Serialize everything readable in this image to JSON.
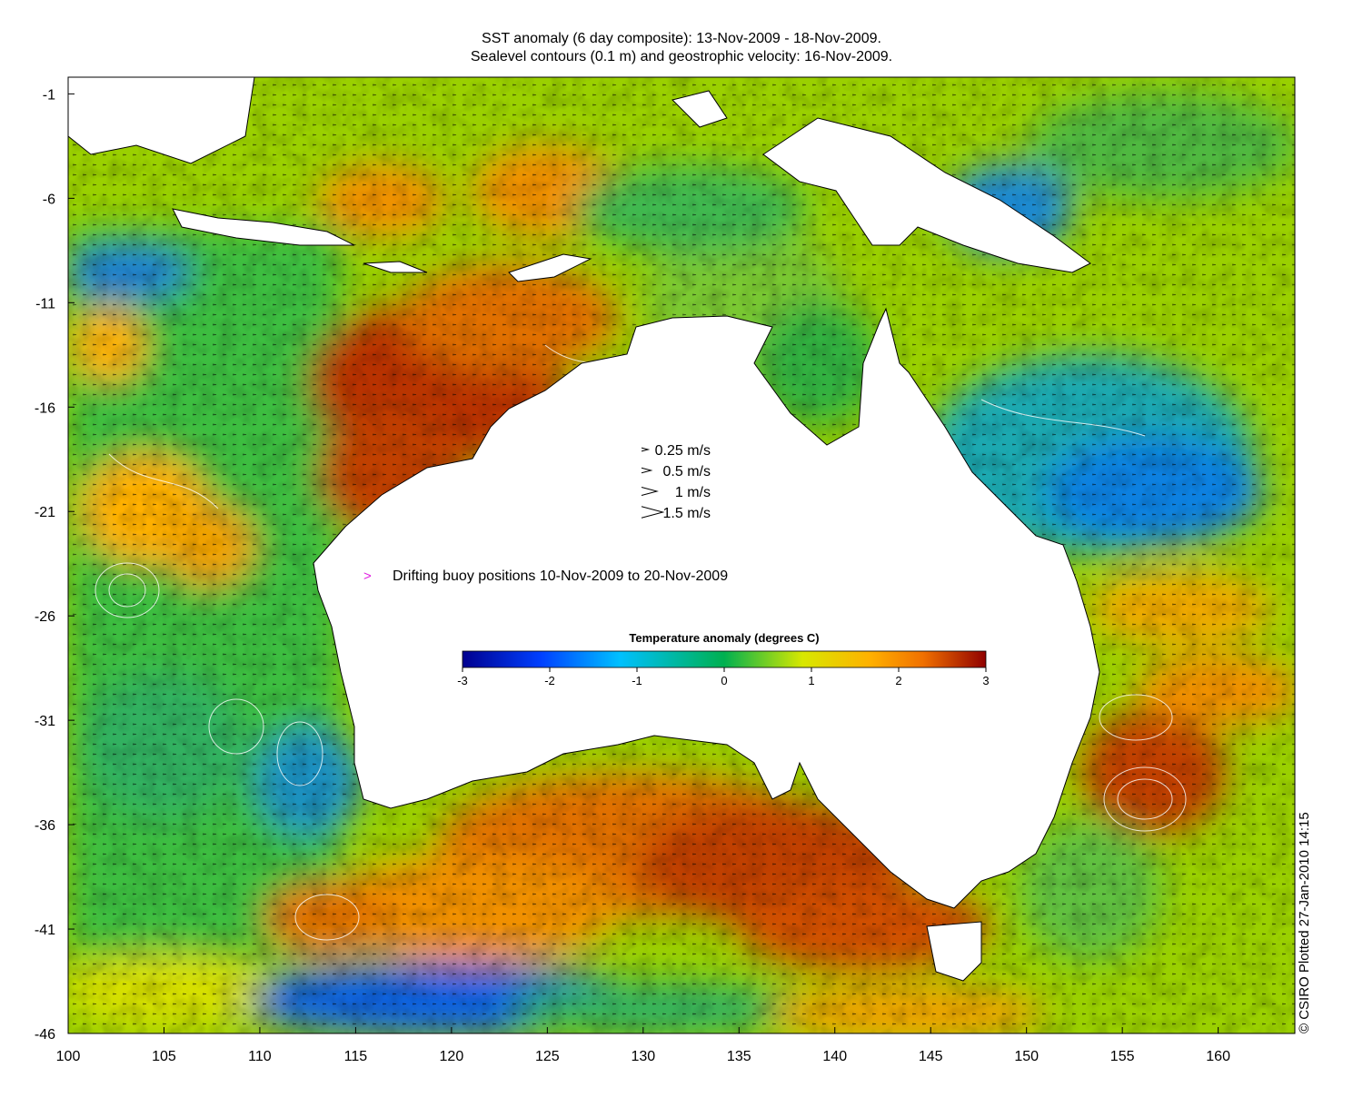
{
  "header": {
    "title_line1": "SST anomaly (6 day composite): 13-Nov-2009 - 18-Nov-2009.",
    "title_line2": "Sealevel contours (0.1 m) and geostrophic velocity: 16-Nov-2009."
  },
  "axes": {
    "x_ticks": [
      "100",
      "105",
      "110",
      "115",
      "120",
      "125",
      "130",
      "135",
      "140",
      "145",
      "150",
      "155",
      "160"
    ],
    "y_ticks": [
      "-1",
      "-6",
      "-11",
      "-16",
      "-21",
      "-26",
      "-31",
      "-36",
      "-41",
      "-46"
    ],
    "x_range": [
      100,
      164
    ],
    "y_range": [
      -46,
      -0.2
    ]
  },
  "velocity_legend": [
    {
      "label": "0.25 m/s",
      "speed": 0.25
    },
    {
      "label": "0.5 m/s",
      "speed": 0.5
    },
    {
      "label": "1 m/s",
      "speed": 1
    },
    {
      "label": "1.5 m/s",
      "speed": 1.5
    }
  ],
  "buoy_legend": {
    "symbol": ">",
    "label": "Drifting buoy positions 10-Nov-2009 to 20-Nov-2009",
    "color": "#e020e0"
  },
  "colorbar": {
    "title": "Temperature anomaly (degrees C)",
    "ticks": [
      "-3",
      "-2",
      "-1",
      "0",
      "1",
      "2",
      "3"
    ],
    "stops": [
      "#00008f",
      "#0040ff",
      "#00c0ff",
      "#00b050",
      "#d8e800",
      "#ffb000",
      "#f07000",
      "#900000"
    ]
  },
  "credit": "© CSIRO Plotted 27-Jan-2010 14:15",
  "colors": {
    "land": "#ffffff",
    "coast": "#000000",
    "contour": "#ffffff",
    "vector": "#000000"
  }
}
